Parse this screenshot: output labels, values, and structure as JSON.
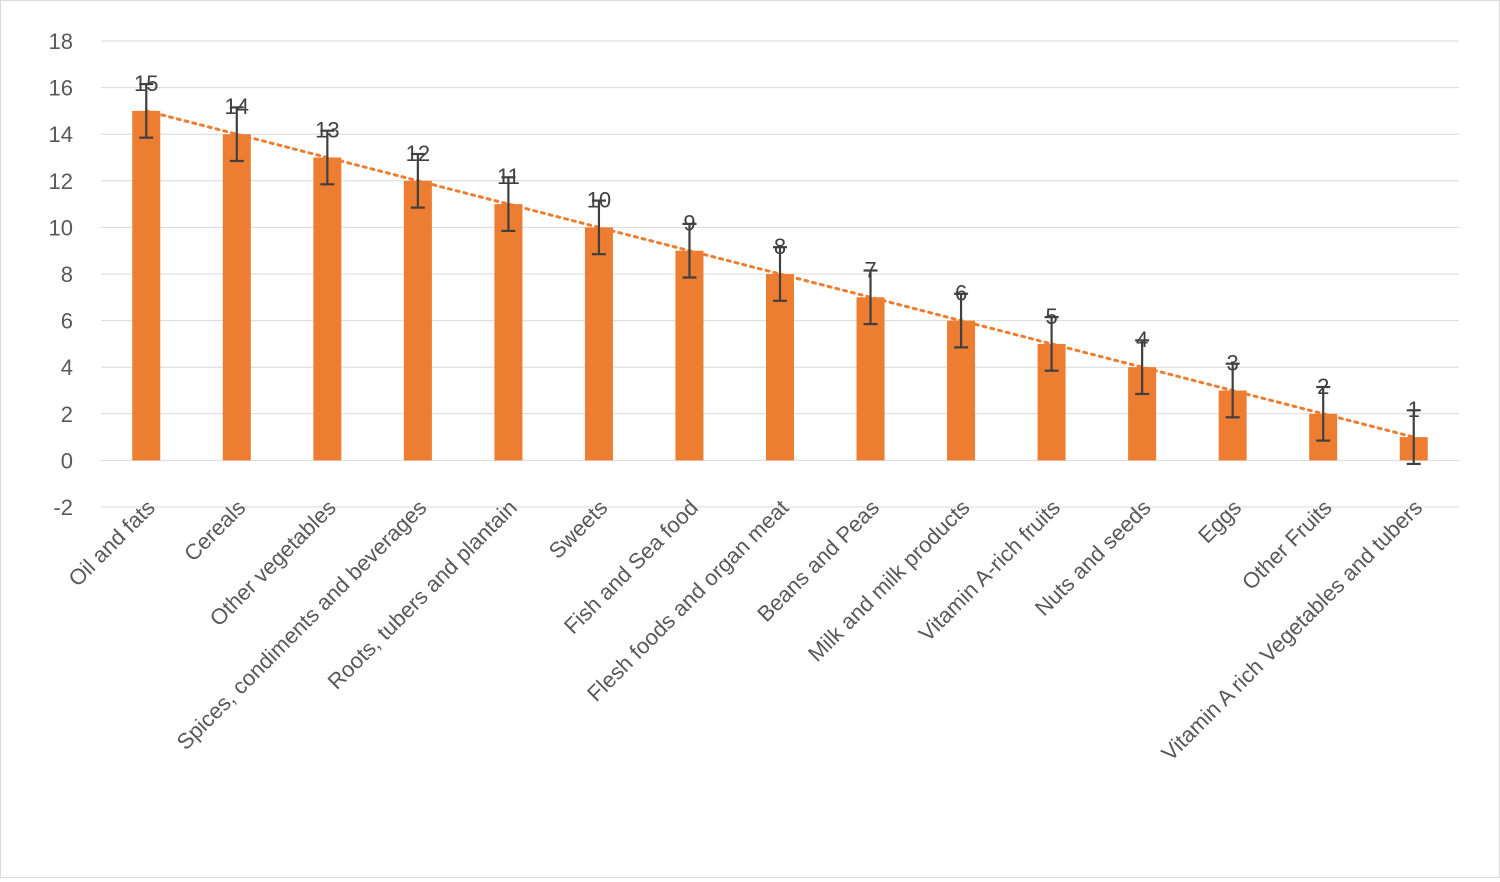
{
  "chart_data": {
    "type": "bar",
    "title": "",
    "xlabel": "",
    "ylabel": "",
    "categories": [
      "Oil and fats",
      "Cereals",
      "Other vegetables",
      "Spices, condiments and beverages",
      "Roots, tubers and plantain",
      "Sweets",
      "Fish and Sea food",
      "Flesh foods and organ meat",
      "Beans and Peas",
      "Milk and milk products",
      "Vitamin A-rich fruits",
      "Nuts and seeds",
      "Eggs",
      "Other Fruits",
      "Vitamin A rich Vegetables and tubers"
    ],
    "values": [
      15,
      14,
      13,
      12,
      11,
      10,
      9,
      8,
      7,
      6,
      5,
      4,
      3,
      2,
      1
    ],
    "error_bars": [
      1.15,
      1.15,
      1.15,
      1.15,
      1.15,
      1.15,
      1.15,
      1.15,
      1.15,
      1.15,
      1.15,
      1.15,
      1.15,
      1.15,
      1.15
    ],
    "ylim": [
      -2,
      18
    ],
    "yticks": [
      -2,
      0,
      2,
      4,
      6,
      8,
      10,
      12,
      14,
      16,
      18
    ],
    "grid": true,
    "trendline": "linear, dotted",
    "legend": "none",
    "colors": {
      "bar": "#ED7D31",
      "trendline": "#ED7D31",
      "error_bar": "#404040",
      "grid": "#d9d9d9"
    }
  }
}
